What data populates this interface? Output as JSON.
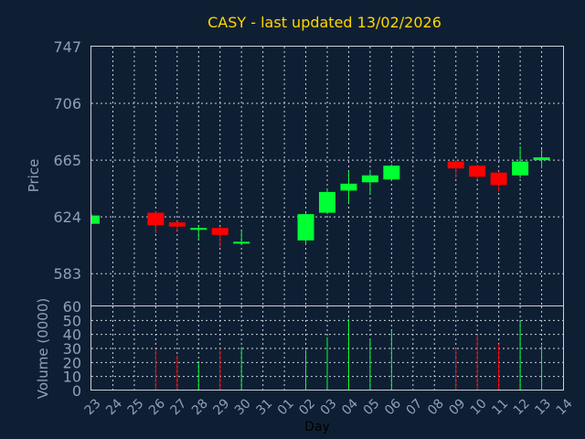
{
  "chart_data": {
    "type": "candlestick",
    "title": "CASY - last updated 13/02/2026",
    "xlabel": "Day",
    "price_panel": {
      "ylabel": "Price",
      "ylim": [
        560,
        747
      ],
      "yticks": [
        583,
        624,
        665,
        706,
        747
      ]
    },
    "volume_panel": {
      "ylabel": "Volume (0000)",
      "ylim": [
        0,
        60
      ],
      "yticks": [
        0,
        10,
        20,
        30,
        40,
        50,
        60
      ]
    },
    "x_ticks": [
      "23",
      "24",
      "25",
      "26",
      "27",
      "28",
      "29",
      "30",
      "31",
      "01",
      "02",
      "03",
      "04",
      "05",
      "06",
      "07",
      "08",
      "09",
      "10",
      "11",
      "12",
      "13",
      "14"
    ],
    "candles": [
      {
        "day": "23",
        "open": 619,
        "close": 625,
        "high": 626,
        "low": 619,
        "volume": 0
      },
      {
        "day": "26",
        "open": 627,
        "close": 618,
        "high": 628,
        "low": 612,
        "volume": 29
      },
      {
        "day": "27",
        "open": 620,
        "close": 617,
        "high": 621,
        "low": 614,
        "volume": 25
      },
      {
        "day": "28",
        "open": 615,
        "close": 616,
        "high": 618,
        "low": 607,
        "volume": 20
      },
      {
        "day": "29",
        "open": 616,
        "close": 611,
        "high": 617,
        "low": 602,
        "volume": 30
      },
      {
        "day": "30",
        "open": 605,
        "close": 606,
        "high": 614,
        "low": 604,
        "volume": 31
      },
      {
        "day": "02",
        "open": 607,
        "close": 626,
        "high": 627,
        "low": 604,
        "volume": 29
      },
      {
        "day": "03",
        "open": 627,
        "close": 642,
        "high": 644,
        "low": 626,
        "volume": 38
      },
      {
        "day": "04",
        "open": 643,
        "close": 648,
        "high": 657,
        "low": 634,
        "volume": 51
      },
      {
        "day": "05",
        "open": 649,
        "close": 654,
        "high": 658,
        "low": 640,
        "volume": 37
      },
      {
        "day": "06",
        "open": 651,
        "close": 661,
        "high": 662,
        "low": 650,
        "volume": 43
      },
      {
        "day": "09",
        "open": 664,
        "close": 659,
        "high": 665,
        "low": 652,
        "volume": 30
      },
      {
        "day": "10",
        "open": 661,
        "close": 653,
        "high": 662,
        "low": 651,
        "volume": 40
      },
      {
        "day": "11",
        "open": 656,
        "close": 647,
        "high": 657,
        "low": 642,
        "volume": 33
      },
      {
        "day": "12",
        "open": 654,
        "close": 664,
        "high": 675,
        "low": 652,
        "volume": 49
      },
      {
        "day": "13",
        "open": 665,
        "close": 667,
        "high": 673,
        "low": 659,
        "volume": 32
      }
    ],
    "colors": {
      "up": "#00ff33",
      "down": "#ff0000"
    },
    "grid": true
  }
}
